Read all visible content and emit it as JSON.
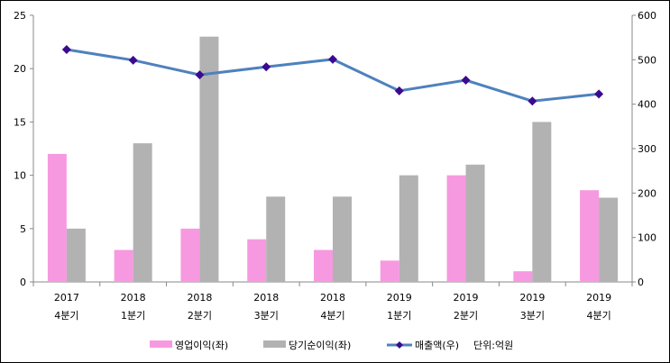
{
  "chart_data": {
    "type": "bar+line",
    "categories": [
      [
        "2017",
        "4분기"
      ],
      [
        "2018",
        "1분기"
      ],
      [
        "2018",
        "2분기"
      ],
      [
        "2018",
        "3분기"
      ],
      [
        "2018",
        "4분기"
      ],
      [
        "2019",
        "1분기"
      ],
      [
        "2019",
        "2분기"
      ],
      [
        "2019",
        "3분기"
      ],
      [
        "2019",
        "4분기"
      ]
    ],
    "series": [
      {
        "name": "영업이익(좌)",
        "type": "bar",
        "axis": "left",
        "color": "#f799e0",
        "values": [
          12,
          3,
          5,
          4,
          3,
          2,
          10,
          1,
          8.6
        ]
      },
      {
        "name": "당기순이익(좌)",
        "type": "bar",
        "axis": "left",
        "color": "#b2b2b2",
        "values": [
          5,
          13,
          23,
          8,
          8,
          10,
          11,
          15,
          7.9
        ]
      },
      {
        "name": "매출액(우)",
        "type": "line",
        "axis": "right",
        "color": "#4f81bd",
        "marker_color": "#3b0a8f",
        "values": [
          523,
          499,
          466,
          484,
          501,
          430,
          454,
          407,
          423
        ]
      }
    ],
    "left_axis": {
      "min": 0,
      "max": 25,
      "ticks": [
        "0",
        "5",
        "10",
        "15",
        "20",
        "25"
      ]
    },
    "right_axis": {
      "min": 0,
      "max": 600,
      "ticks": [
        "0",
        "100",
        "200",
        "300",
        "400",
        "500",
        "600"
      ]
    },
    "unit_note": "단위:억원",
    "legend": "bottom"
  }
}
